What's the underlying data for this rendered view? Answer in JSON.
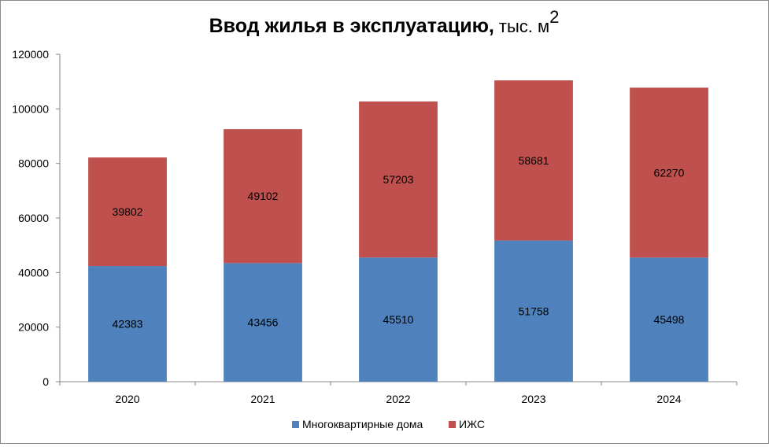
{
  "chart_data": {
    "type": "bar",
    "stacked": true,
    "title": "Ввод жилья в эксплуатацию,",
    "title_unit": "тыс. м",
    "title_unit_sup": "2",
    "categories": [
      "2020",
      "2021",
      "2022",
      "2023",
      "2024"
    ],
    "series": [
      {
        "name": "Многоквартирные дома",
        "color": "#4f81bd",
        "values": [
          42383,
          43456,
          45510,
          51758,
          45498
        ]
      },
      {
        "name": "ИЖС",
        "color": "#c0504d",
        "values": [
          39802,
          49102,
          57203,
          58681,
          62270
        ]
      }
    ],
    "ylim": [
      0,
      120000
    ],
    "yticks": [
      "0",
      "20000",
      "40000",
      "60000",
      "80000",
      "100000",
      "120000"
    ],
    "grid": false,
    "legend_position": "bottom",
    "data_labels": true
  }
}
